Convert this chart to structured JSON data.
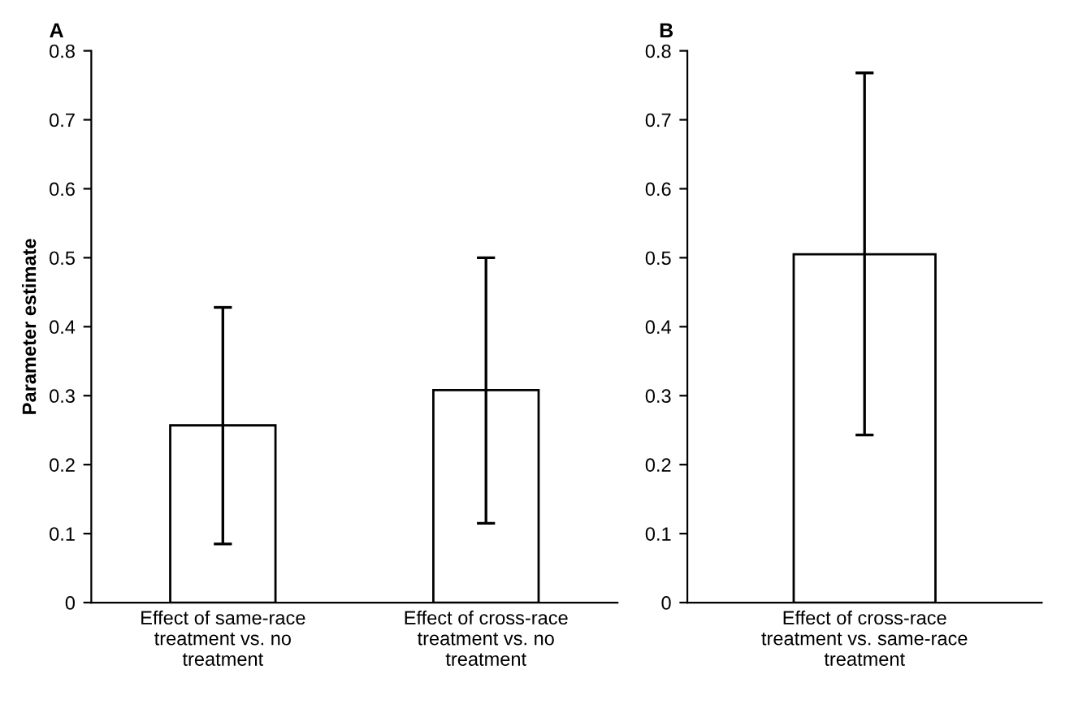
{
  "chart_data": [
    {
      "type": "bar",
      "title": "A",
      "ylabel": "Parameter estimate",
      "categories": [
        "Effect of same-race treatment vs. no treatment",
        "Effect of cross-race treatment vs. no treatment"
      ],
      "series": [
        {
          "color": "#ffffff",
          "values": [
            0.257,
            0.308
          ],
          "errors": [
            [
              0.085,
              0.428
            ],
            [
              0.115,
              0.5
            ]
          ]
        }
      ],
      "ylim": [
        0,
        0.8
      ],
      "yticks": [
        0,
        0.1,
        0.2,
        0.3,
        0.4,
        0.5,
        0.6,
        0.7,
        0.8
      ],
      "grid": false,
      "legend": false
    },
    {
      "type": "bar",
      "title": "B",
      "categories": [
        "Effect of cross-race treatment vs. same-race treatment"
      ],
      "series": [
        {
          "color": "#ffffff",
          "values": [
            0.505
          ],
          "errors": [
            [
              0.243,
              0.768
            ]
          ]
        }
      ],
      "ylim": [
        0,
        0.8
      ],
      "yticks": [
        0,
        0.1,
        0.2,
        0.3,
        0.4,
        0.5,
        0.6,
        0.7,
        0.8
      ],
      "grid": false,
      "legend": false
    }
  ]
}
